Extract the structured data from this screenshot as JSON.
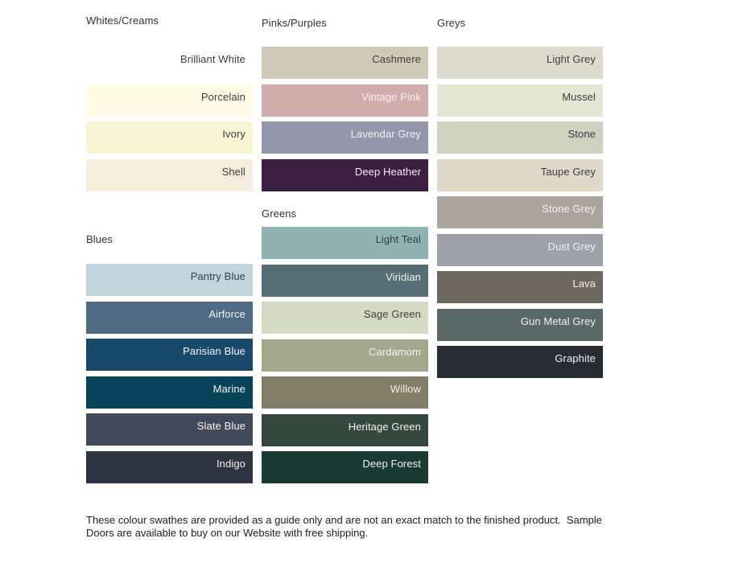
{
  "page": {
    "background": "#ffffff"
  },
  "sections": {
    "whites": {
      "title": "Whites/Creams",
      "swatches": [
        {
          "name": "Brilliant White",
          "hex": "#ffffff",
          "label_color": "#3d3d3d"
        },
        {
          "name": "Porcelain",
          "hex": "#fffbe6",
          "label_color": "#3d3d3d"
        },
        {
          "name": "Ivory",
          "hex": "#faf5d2",
          "label_color": "#3d3d3d"
        },
        {
          "name": "Shell",
          "hex": "#f6eddd",
          "label_color": "#3d3d3d"
        }
      ]
    },
    "blues": {
      "title": "Blues",
      "swatches": [
        {
          "name": "Pantry Blue",
          "hex": "#c3d5dc",
          "label_color": "#36444c"
        },
        {
          "name": "Airforce",
          "hex": "#4e6b83",
          "label_color": "#f4f4f4"
        },
        {
          "name": "Parisian Blue",
          "hex": "#1a4a6b",
          "label_color": "#f4f4f4"
        },
        {
          "name": "Marine",
          "hex": "#07445a",
          "label_color": "#f4f4f4"
        },
        {
          "name": "Slate Blue",
          "hex": "#414a58",
          "label_color": "#f4f4f4"
        },
        {
          "name": "Indigo",
          "hex": "#2b3440",
          "label_color": "#f4f4f4"
        }
      ]
    },
    "pinks": {
      "title": "Pinks/Purples",
      "swatches": [
        {
          "name": "Cashmere",
          "hex": "#cfc9b8",
          "label_color": "#3d3d3d"
        },
        {
          "name": "Vintage Pink",
          "hex": "#d3acac",
          "label_color": "#f8f2f2"
        },
        {
          "name": "Lavendar Grey",
          "hex": "#9298a9",
          "label_color": "#f2f2f4"
        },
        {
          "name": "Deep Heather",
          "hex": "#3c1f42",
          "label_color": "#f2f2f2"
        }
      ]
    },
    "greens": {
      "title": "Greens",
      "swatches": [
        {
          "name": "Light Teal",
          "hex": "#8fb2b3",
          "label_color": "#30403f"
        },
        {
          "name": "Viridian",
          "hex": "#556e75",
          "label_color": "#f2f2f2"
        },
        {
          "name": "Sage Green",
          "hex": "#d5dac5",
          "label_color": "#3d3d3d"
        },
        {
          "name": "Cardamom",
          "hex": "#a3a78c",
          "label_color": "#f5f5f0"
        },
        {
          "name": "Willow",
          "hex": "#807e66",
          "label_color": "#f5f3e8"
        },
        {
          "name": "Heritage Green",
          "hex": "#354840",
          "label_color": "#f2f2f2"
        },
        {
          "name": "Deep Forest",
          "hex": "#1a3b34",
          "label_color": "#f2f2f2"
        }
      ]
    },
    "greys": {
      "title": "Greys",
      "swatches": [
        {
          "name": "Light Grey",
          "hex": "#dcdbcd",
          "label_color": "#3d3d3d"
        },
        {
          "name": "Mussel",
          "hex": "#e4e6d4",
          "label_color": "#3d3d3d"
        },
        {
          "name": "Stone",
          "hex": "#d0d2c0",
          "label_color": "#3d3d3d"
        },
        {
          "name": "Taupe Grey",
          "hex": "#e0d9c9",
          "label_color": "#3d3d3d"
        },
        {
          "name": "Stone Grey",
          "hex": "#aca59c",
          "label_color": "#f5f5f2"
        },
        {
          "name": "Dust Grey",
          "hex": "#9fa1a9",
          "label_color": "#f2f2f4"
        },
        {
          "name": "Lava",
          "hex": "#6c685e",
          "label_color": "#f2f1ee"
        },
        {
          "name": "Gun Metal Grey",
          "hex": "#5a6866",
          "label_color": "#f2f4f3"
        },
        {
          "name": "Graphite",
          "hex": "#272c33",
          "label_color": "#f2f2f2"
        }
      ]
    }
  },
  "footer": {
    "text": "These colour swathes are provided as a guide only and are not an exact match to the finished product.  Sample\nDoors are available to buy on our Website with free shipping."
  }
}
